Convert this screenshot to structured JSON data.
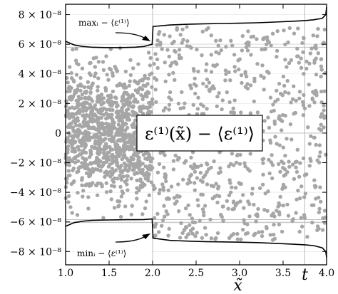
{
  "chart_data": {
    "type": "scatter",
    "xlabel": "x̃",
    "x_marker_label": "t",
    "x_marker": 3.75,
    "xlim": [
      1.0,
      4.0
    ],
    "ylim": [
      -8.9e-08,
      8.7e-08
    ],
    "grid": true,
    "colors": {
      "points": "#a6a6a6",
      "lines": "#000000",
      "grid": "#b5b5b5"
    },
    "x_ticks": [
      {
        "value": 1.0,
        "label": "1.0"
      },
      {
        "value": 1.5,
        "label": "1.5"
      },
      {
        "value": 2.0,
        "label": "2.0"
      },
      {
        "value": 2.5,
        "label": "2.5"
      },
      {
        "value": 3.0,
        "label": "3.0"
      },
      {
        "value": 3.5,
        "label": "3.5"
      },
      {
        "value": 4.0,
        "label": "4.0"
      }
    ],
    "y_ticks": [
      {
        "value": 8e-08,
        "label": "8 × 10⁻⁸"
      },
      {
        "value": 6e-08,
        "label": "6 × 10⁻⁸"
      },
      {
        "value": 4e-08,
        "label": "4 × 10⁻⁸"
      },
      {
        "value": 2e-08,
        "label": "2 × 10⁻⁸"
      },
      {
        "value": 0,
        "label": "0"
      },
      {
        "value": -2e-08,
        "label": "−2 × 10⁻⁸"
      },
      {
        "value": -4e-08,
        "label": "−4 × 10⁻⁸"
      },
      {
        "value": -6e-08,
        "label": "−6 × 10⁻⁸"
      },
      {
        "value": -8e-08,
        "label": "−8 × 10⁻⁸"
      }
    ],
    "series": [
      {
        "label": "maxᵢ − ⟨ε⁽¹⁾⟩",
        "style": "line",
        "x": [
          1.0,
          1.1,
          1.2,
          1.3,
          1.4,
          1.5,
          1.6,
          1.7,
          1.8,
          1.9,
          1.995,
          2.005,
          2.2,
          2.4,
          2.6,
          2.8,
          3.0,
          3.2,
          3.4,
          3.6,
          3.75,
          3.85,
          3.95,
          3.99,
          4.0
        ],
        "y": [
          6.2e-08,
          5.95e-08,
          5.85e-08,
          5.8e-08,
          5.78e-08,
          5.77e-08,
          5.77e-08,
          5.78e-08,
          5.8e-08,
          5.85e-08,
          6e-08,
          7.2e-08,
          7.3e-08,
          7.35e-08,
          7.38e-08,
          7.4e-08,
          7.42e-08,
          7.45e-08,
          7.5e-08,
          7.55e-08,
          7.6e-08,
          7.65e-08,
          7.75e-08,
          8e-08,
          8.5e-08
        ]
      },
      {
        "label": "minᵢ − ⟨ε⁽¹⁾⟩",
        "style": "line",
        "x": [
          1.0,
          1.1,
          1.2,
          1.3,
          1.4,
          1.5,
          1.6,
          1.7,
          1.8,
          1.9,
          1.995,
          2.005,
          2.2,
          2.4,
          2.6,
          2.8,
          3.0,
          3.2,
          3.4,
          3.6,
          3.75,
          3.85,
          3.95,
          3.99,
          4.0
        ],
        "y": [
          -6.3e-08,
          -6.05e-08,
          -5.95e-08,
          -5.9e-08,
          -5.88e-08,
          -5.87e-08,
          -5.86e-08,
          -5.85e-08,
          -5.85e-08,
          -5.84e-08,
          -5.8e-08,
          -7.1e-08,
          -7.25e-08,
          -7.3e-08,
          -7.33e-08,
          -7.35e-08,
          -7.37e-08,
          -7.4e-08,
          -7.45e-08,
          -7.5e-08,
          -7.55e-08,
          -7.6e-08,
          -7.75e-08,
          -8e-08,
          -8.4e-08
        ]
      },
      {
        "label": "ε⁽¹⁾(x̃) − ⟨ε⁽¹⁾⟩",
        "style": "markers",
        "n_points": 1800,
        "regions": [
          {
            "xrange": [
              1.0,
              2.0
            ],
            "count": 1100,
            "ymax": 5.8e-08,
            "ymin": -5.85e-08
          },
          {
            "xrange": [
              2.0,
              4.0
            ],
            "count": 700,
            "ymax": 7.3e-08,
            "ymin": -7.3e-08
          }
        ]
      }
    ],
    "reference_lines": {
      "horizontal": [
        0,
        5.8e-08,
        6e-08,
        -5.85e-08,
        -6.05e-08
      ],
      "vertical": [
        2.0,
        3.75
      ]
    },
    "annotations": {
      "max_label": "maxᵢ − ⟨ε⁽¹⁾⟩",
      "min_label": "minᵢ − ⟨ε⁽¹⁾⟩",
      "center_label": "ε⁽¹⁾(x̃) − ⟨ε⁽¹⁾⟩"
    }
  }
}
